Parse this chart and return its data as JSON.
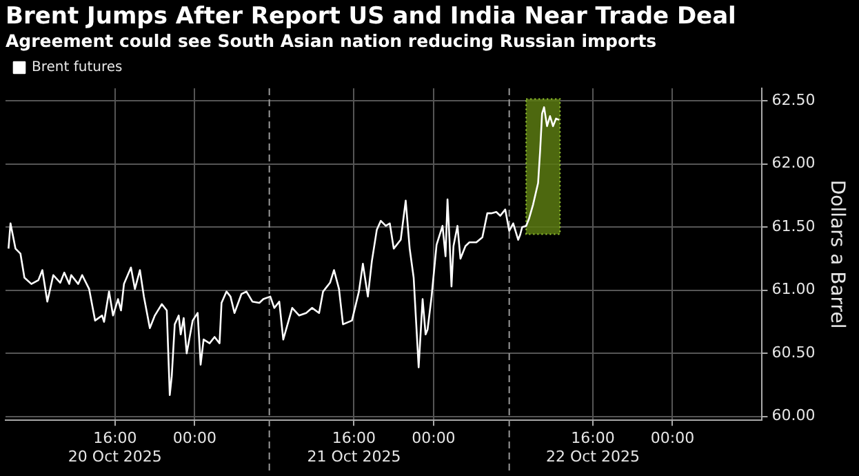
{
  "chart_data": {
    "type": "line",
    "title": "Brent Jumps After Report US and India Near Trade Deal",
    "subtitle": "Agreement could see South Asian nation reducing Russian imports",
    "ylabel": "Dollars a Barrel",
    "legend": "top left",
    "grid": true,
    "marker": "none",
    "line_style": "solid",
    "xlim": [
      "2025-10-20T05:00",
      "2025-10-23T09:00"
    ],
    "xticks": [
      {
        "value": "2025-10-20T16:00",
        "label": "16:00\n20 Oct 2025"
      },
      {
        "value": "2025-10-21T00:00",
        "label": "00:00"
      },
      {
        "value": "2025-10-21T16:00",
        "label": "16:00\n21 Oct 2025"
      },
      {
        "value": "2025-10-22T00:00",
        "label": "00:00"
      },
      {
        "value": "2025-10-22T16:00",
        "label": "16:00\n22 Oct 2025"
      },
      {
        "value": "2025-10-23T00:00",
        "label": "00:00"
      }
    ],
    "ylim": [
      59.97,
      62.6
    ],
    "yticks": [
      {
        "value": 60,
        "label": "60.00"
      },
      {
        "value": 60.5,
        "label": "60.50"
      },
      {
        "value": 61,
        "label": "61.00"
      },
      {
        "value": 61.5,
        "label": "61.50"
      },
      {
        "value": 62,
        "label": "62.00"
      },
      {
        "value": 62.5,
        "label": "62.50"
      }
    ],
    "ref_lines": [
      {
        "axis": "x",
        "value": "2025-10-21T07:30",
        "line_style": "dashed",
        "color": "#9a9a9a"
      },
      {
        "axis": "x",
        "value": "2025-10-22T07:36",
        "line_style": "dashed",
        "color": "#9a9a9a"
      }
    ],
    "bands": [
      {
        "axis": "x",
        "from": "2025-10-22T09:18",
        "to": "2025-10-22T12:42",
        "color": "#5a7a12"
      }
    ],
    "series": [
      {
        "name": "Brent futures",
        "color": "#ffffff",
        "x": [
          "2025-10-20T05:18",
          "2025-10-20T05:30",
          "2025-10-20T06:00",
          "2025-10-20T06:30",
          "2025-10-20T06:54",
          "2025-10-20T07:36",
          "2025-10-20T08:18",
          "2025-10-20T08:42",
          "2025-10-20T09:12",
          "2025-10-20T09:48",
          "2025-10-20T10:30",
          "2025-10-20T10:54",
          "2025-10-20T11:24",
          "2025-10-20T11:36",
          "2025-10-20T12:18",
          "2025-10-20T12:42",
          "2025-10-20T13:24",
          "2025-10-20T14:00",
          "2025-10-20T14:42",
          "2025-10-20T14:54",
          "2025-10-20T15:24",
          "2025-10-20T15:48",
          "2025-10-20T16:18",
          "2025-10-20T16:36",
          "2025-10-20T16:54",
          "2025-10-20T17:36",
          "2025-10-20T18:00",
          "2025-10-20T18:30",
          "2025-10-20T18:54",
          "2025-10-20T19:30",
          "2025-10-20T20:00",
          "2025-10-20T20:42",
          "2025-10-20T21:12",
          "2025-10-20T21:30",
          "2025-10-20T21:42",
          "2025-10-20T22:00",
          "2025-10-20T22:24",
          "2025-10-20T22:36",
          "2025-10-20T22:54",
          "2025-10-20T23:12",
          "2025-10-20T23:48",
          "2025-10-21T00:18",
          "2025-10-21T00:36",
          "2025-10-21T00:54",
          "2025-10-21T01:30",
          "2025-10-21T02:00",
          "2025-10-21T02:30",
          "2025-10-21T02:42",
          "2025-10-21T03:12",
          "2025-10-21T03:36",
          "2025-10-21T04:00",
          "2025-10-21T04:42",
          "2025-10-21T05:12",
          "2025-10-21T05:48",
          "2025-10-21T06:30",
          "2025-10-21T06:54",
          "2025-10-21T07:36",
          "2025-10-21T08:00",
          "2025-10-21T08:30",
          "2025-10-21T08:54",
          "2025-10-21T09:48",
          "2025-10-21T10:30",
          "2025-10-21T11:12",
          "2025-10-21T11:48",
          "2025-10-21T12:30",
          "2025-10-21T12:54",
          "2025-10-21T13:36",
          "2025-10-21T14:00",
          "2025-10-21T14:30",
          "2025-10-21T14:54",
          "2025-10-21T15:48",
          "2025-10-21T16:30",
          "2025-10-21T16:54",
          "2025-10-21T17:24",
          "2025-10-21T17:48",
          "2025-10-21T18:18",
          "2025-10-21T18:42",
          "2025-10-21T19:12",
          "2025-10-21T19:36",
          "2025-10-21T20:00",
          "2025-10-21T20:42",
          "2025-10-21T21:12",
          "2025-10-21T21:36",
          "2025-10-21T22:00",
          "2025-10-21T22:30",
          "2025-10-21T22:54",
          "2025-10-21T23:12",
          "2025-10-21T23:24",
          "2025-10-21T23:48",
          "2025-10-22T00:18",
          "2025-10-22T00:54",
          "2025-10-22T01:12",
          "2025-10-22T01:24",
          "2025-10-22T01:36",
          "2025-10-22T01:48",
          "2025-10-22T02:00",
          "2025-10-22T02:24",
          "2025-10-22T02:42",
          "2025-10-22T03:12",
          "2025-10-22T03:36",
          "2025-10-22T04:18",
          "2025-10-22T04:54",
          "2025-10-22T05:24",
          "2025-10-22T05:48",
          "2025-10-22T06:18",
          "2025-10-22T06:42",
          "2025-10-22T07:12",
          "2025-10-22T07:36",
          "2025-10-22T08:00",
          "2025-10-22T08:30",
          "2025-10-22T08:42",
          "2025-10-22T08:54",
          "2025-10-22T09:18",
          "2025-10-22T09:36",
          "2025-10-22T10:00",
          "2025-10-22T10:30",
          "2025-10-22T10:42",
          "2025-10-22T10:54",
          "2025-10-22T11:06",
          "2025-10-22T11:24",
          "2025-10-22T11:42",
          "2025-10-22T12:00",
          "2025-10-22T12:18",
          "2025-10-22T12:36"
        ],
        "values": [
          61.33,
          61.53,
          61.33,
          61.29,
          61.1,
          61.05,
          61.08,
          61.16,
          60.91,
          61.12,
          61.06,
          61.14,
          61.05,
          61.12,
          61.05,
          61.12,
          61.01,
          60.76,
          60.8,
          60.75,
          60.99,
          60.8,
          60.93,
          60.84,
          61.05,
          61.18,
          61.01,
          61.16,
          60.95,
          60.7,
          60.8,
          60.89,
          60.84,
          60.17,
          60.32,
          60.73,
          60.8,
          60.65,
          60.78,
          60.5,
          60.76,
          60.82,
          60.41,
          60.61,
          60.58,
          60.63,
          60.58,
          60.9,
          60.99,
          60.95,
          60.82,
          60.97,
          60.99,
          60.91,
          60.9,
          60.93,
          60.95,
          60.86,
          60.91,
          60.61,
          60.86,
          60.8,
          60.82,
          60.86,
          60.82,
          60.99,
          61.06,
          61.16,
          61.01,
          60.73,
          60.76,
          60.99,
          61.21,
          60.95,
          61.23,
          61.48,
          61.55,
          61.51,
          61.53,
          61.33,
          61.4,
          61.71,
          61.33,
          61.1,
          60.39,
          60.93,
          60.65,
          60.69,
          60.95,
          61.36,
          61.51,
          61.27,
          61.72,
          61.4,
          61.03,
          61.35,
          61.51,
          61.25,
          61.35,
          61.38,
          61.38,
          61.42,
          61.61,
          61.61,
          61.62,
          61.59,
          61.64,
          61.47,
          61.53,
          61.4,
          61.44,
          61.5,
          61.51,
          61.57,
          61.68,
          61.85,
          62.1,
          62.4,
          62.45,
          62.3,
          62.38,
          62.3,
          62.36,
          62.35
        ]
      }
    ]
  }
}
